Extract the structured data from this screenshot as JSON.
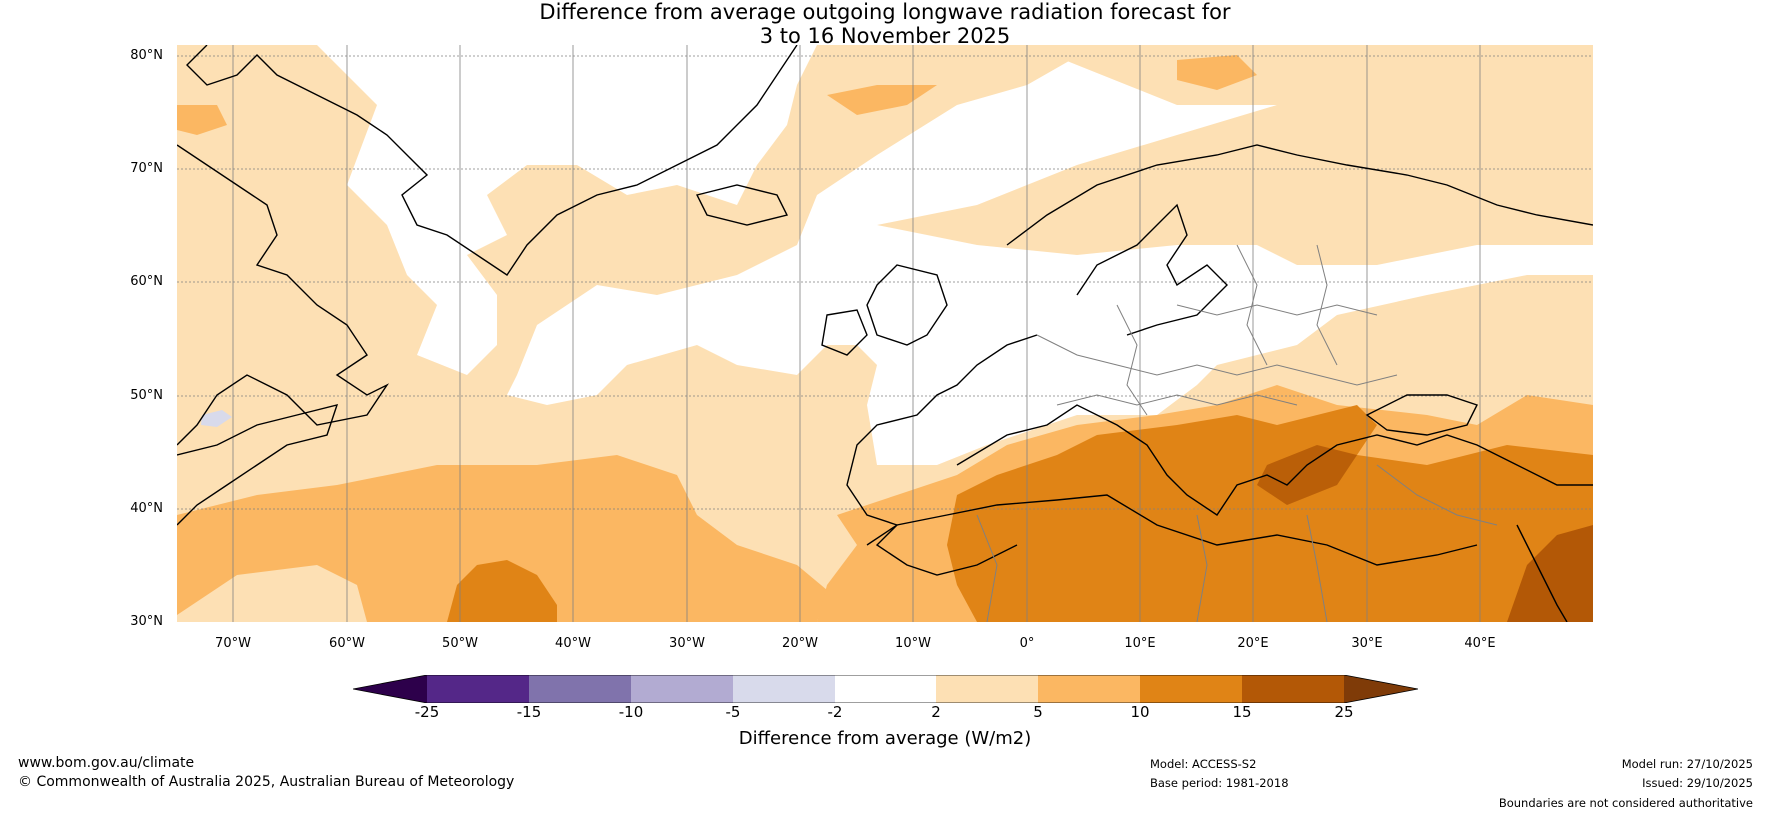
{
  "title": {
    "line1": "Difference from average outgoing longwave radiation forecast for",
    "line2": "3 to 16 November 2025"
  },
  "map": {
    "extent": {
      "lon_min": -75,
      "lon_max": 50,
      "lat_min": 30,
      "lat_max": 81
    },
    "lat_labels": [
      "30°N",
      "40°N",
      "50°N",
      "60°N",
      "70°N",
      "80°N"
    ],
    "lon_labels": [
      "70°W",
      "60°W",
      "50°W",
      "40°W",
      "30°W",
      "20°W",
      "10°W",
      "0°",
      "10°E",
      "20°E",
      "30°E",
      "40°E"
    ],
    "colors": {
      "c2_5": "#fde0b4",
      "c5_10": "#fbb762",
      "c10_15": "#e08416",
      "c15_25": "#b35806",
      "land_line": "#000000",
      "border_line": "#808080",
      "neg2_5": "#d8daeb"
    }
  },
  "colorbar": {
    "colors": [
      "#2d004b",
      "#542788",
      "#8073ac",
      "#b2abd2",
      "#d8daeb",
      "#ffffff",
      "#fde0b4",
      "#fbb762",
      "#e08416",
      "#b35806",
      "#7f3b08"
    ],
    "ticks": [
      "-25",
      "-15",
      "-10",
      "-5",
      "-2",
      "2",
      "5",
      "10",
      "15",
      "25"
    ],
    "title": "Difference from average (W/m2)"
  },
  "footer": {
    "url": "www.bom.gov.au/climate",
    "copyright": "© Commonwealth of Australia 2025, Australian Bureau of Meteorology",
    "model": "Model: ACCESS-S2",
    "base_period": "Base period: 1981-2018",
    "model_run": "Model run: 27/10/2025",
    "issued": "Issued: 29/10/2025",
    "disclaimer": "Boundaries are not considered authoritative"
  }
}
